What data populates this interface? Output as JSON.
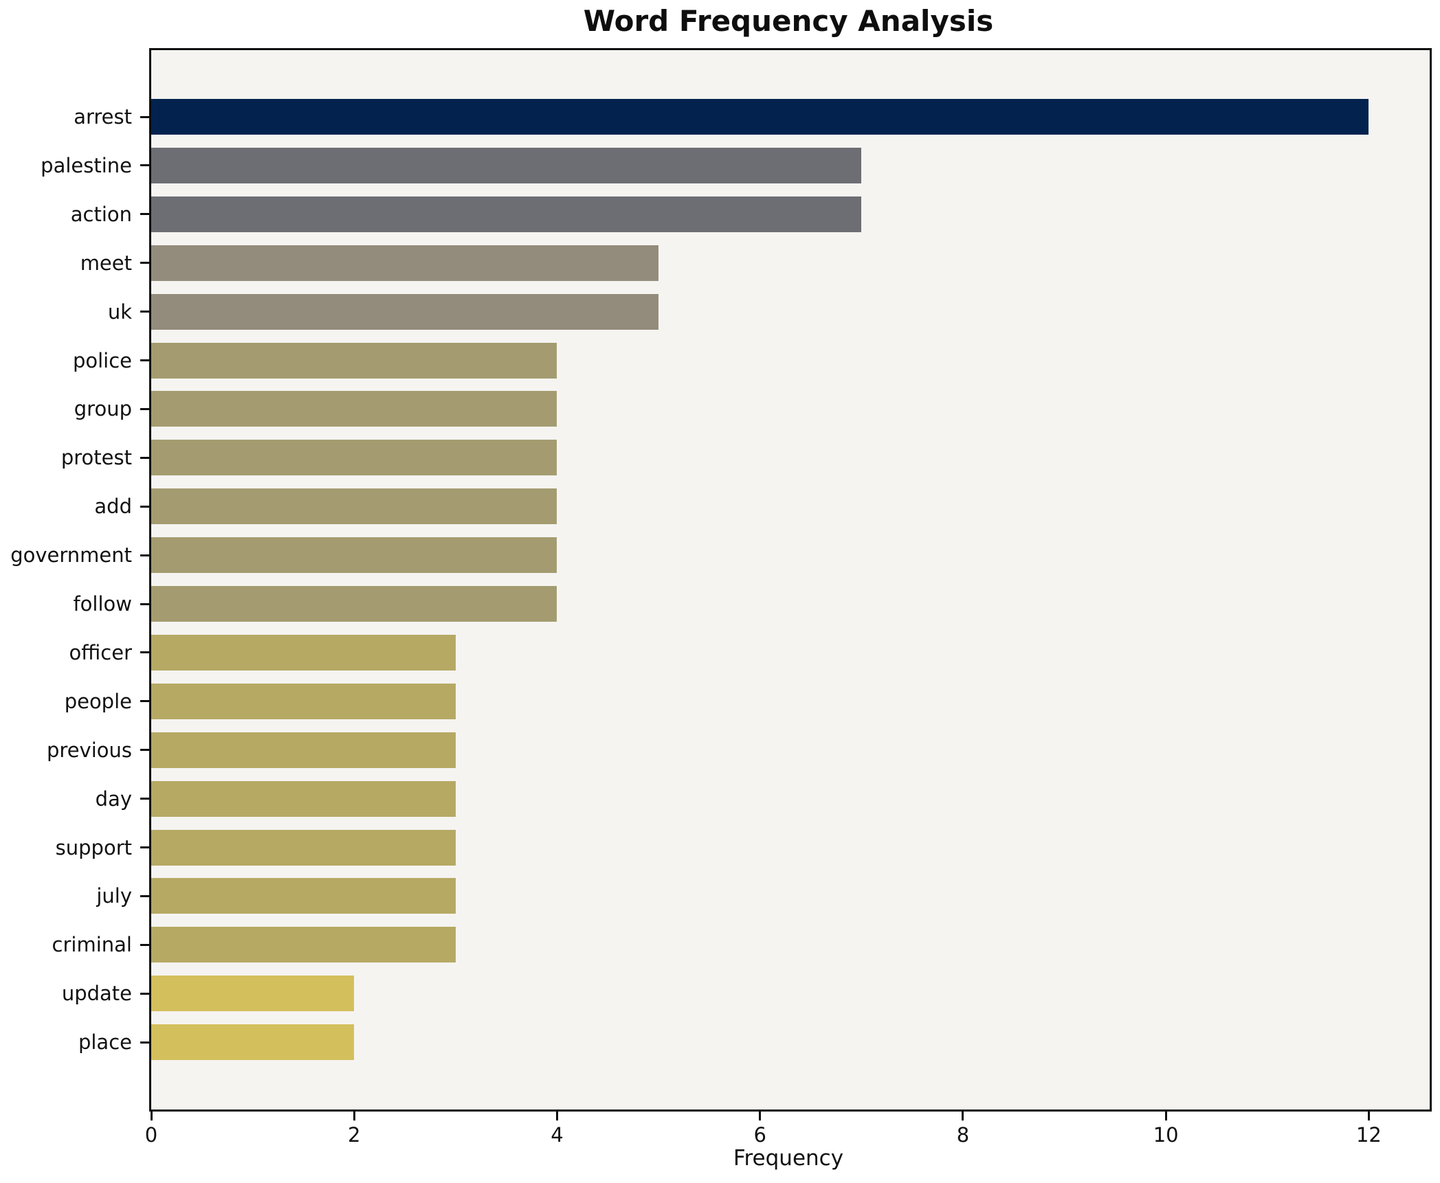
{
  "title": "Word Frequency Analysis",
  "chart_data": {
    "type": "bar",
    "orientation": "horizontal",
    "title": "Word Frequency Analysis",
    "xlabel": "Frequency",
    "ylabel": "",
    "categories": [
      "arrest",
      "palestine",
      "action",
      "meet",
      "uk",
      "police",
      "group",
      "protest",
      "add",
      "government",
      "follow",
      "officer",
      "people",
      "previous",
      "day",
      "support",
      "july",
      "criminal",
      "update",
      "place"
    ],
    "values": [
      12,
      7,
      7,
      5,
      5,
      4,
      4,
      4,
      4,
      4,
      4,
      3,
      3,
      3,
      3,
      3,
      3,
      3,
      2,
      2
    ],
    "xlim": [
      0,
      12.6
    ],
    "xticks": [
      0,
      2,
      4,
      6,
      8,
      10,
      12
    ],
    "grid": false,
    "legend": false,
    "bar_colors": [
      "#03234e",
      "#6c6e74",
      "#6c6e74",
      "#938c7c",
      "#938c7c",
      "#a49c70",
      "#a49c70",
      "#a49c70",
      "#a49c70",
      "#a49c70",
      "#a49c70",
      "#b6a964",
      "#b6a964",
      "#b6a964",
      "#b6a964",
      "#b6a964",
      "#b6a964",
      "#b6a964",
      "#d3bf5c",
      "#d3bf5c"
    ],
    "plot_background": "#f5f4f1",
    "figure_background": "#ffffff",
    "spine_color": "#0e0e0e"
  }
}
